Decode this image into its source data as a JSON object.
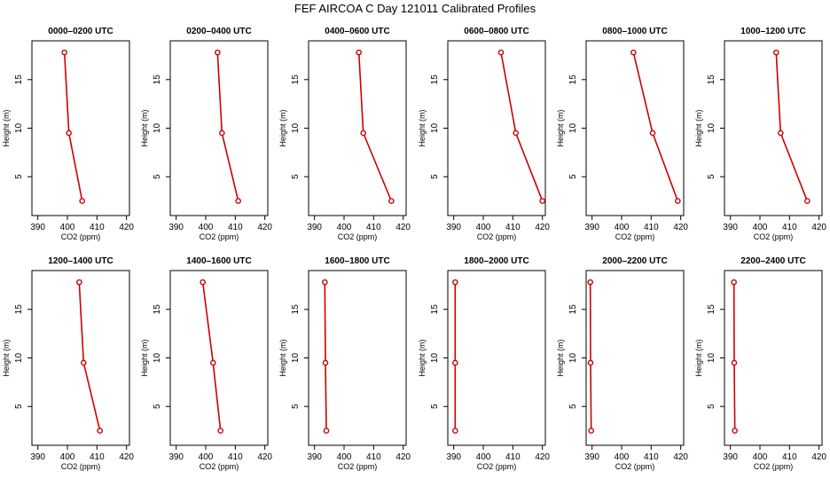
{
  "figure": {
    "title": "FEF AIRCOA C  Day 121011  Calibrated Profiles"
  },
  "chart_data": [
    {
      "type": "line",
      "title": "0000–0200 UTC",
      "xlabel": "CO2 (ppm)",
      "ylabel": "Height (m)",
      "xlim": [
        388,
        421
      ],
      "ylim": [
        1,
        19
      ],
      "xticks": [
        390,
        400,
        410,
        420
      ],
      "yticks": [
        5,
        10,
        15
      ],
      "x": [
        405,
        400.5,
        399
      ],
      "y": [
        2.5,
        9.5,
        17.8
      ]
    },
    {
      "type": "line",
      "title": "0200–0400 UTC",
      "xlabel": "CO2 (ppm)",
      "ylabel": "Height (m)",
      "xlim": [
        388,
        421
      ],
      "ylim": [
        1,
        19
      ],
      "xticks": [
        390,
        400,
        410,
        420
      ],
      "yticks": [
        5,
        10,
        15
      ],
      "x": [
        411,
        405.5,
        404
      ],
      "y": [
        2.5,
        9.5,
        17.8
      ]
    },
    {
      "type": "line",
      "title": "0400–0600 UTC",
      "xlabel": "CO2 (ppm)",
      "ylabel": "Height (m)",
      "xlim": [
        388,
        421
      ],
      "ylim": [
        1,
        19
      ],
      "xticks": [
        390,
        400,
        410,
        420
      ],
      "yticks": [
        5,
        10,
        15
      ],
      "x": [
        416,
        406.5,
        405
      ],
      "y": [
        2.5,
        9.5,
        17.8
      ]
    },
    {
      "type": "line",
      "title": "0600–0800 UTC",
      "xlabel": "CO2 (ppm)",
      "ylabel": "Height (m)",
      "xlim": [
        388,
        421
      ],
      "ylim": [
        1,
        19
      ],
      "xticks": [
        390,
        400,
        410,
        420
      ],
      "yticks": [
        5,
        10,
        15
      ],
      "x": [
        420,
        411,
        406
      ],
      "y": [
        2.5,
        9.5,
        17.8
      ]
    },
    {
      "type": "line",
      "title": "0800–1000 UTC",
      "xlabel": "CO2 (ppm)",
      "ylabel": "Height (m)",
      "xlim": [
        388,
        421
      ],
      "ylim": [
        1,
        19
      ],
      "xticks": [
        390,
        400,
        410,
        420
      ],
      "yticks": [
        5,
        10,
        15
      ],
      "x": [
        419,
        410.5,
        404
      ],
      "y": [
        2.5,
        9.5,
        17.8
      ]
    },
    {
      "type": "line",
      "title": "1000–1200 UTC",
      "xlabel": "CO2 (ppm)",
      "ylabel": "Height (m)",
      "xlim": [
        388,
        421
      ],
      "ylim": [
        1,
        19
      ],
      "xticks": [
        390,
        400,
        410,
        420
      ],
      "yticks": [
        5,
        10,
        15
      ],
      "x": [
        416,
        407,
        405.5
      ],
      "y": [
        2.5,
        9.5,
        17.8
      ]
    },
    {
      "type": "line",
      "title": "1200–1400 UTC",
      "xlabel": "CO2 (ppm)",
      "ylabel": "Height (m)",
      "xlim": [
        388,
        421
      ],
      "ylim": [
        1,
        19
      ],
      "xticks": [
        390,
        400,
        410,
        420
      ],
      "yticks": [
        5,
        10,
        15
      ],
      "x": [
        411,
        405.5,
        404
      ],
      "y": [
        2.5,
        9.5,
        17.8
      ]
    },
    {
      "type": "line",
      "title": "1400–1600 UTC",
      "xlabel": "CO2 (ppm)",
      "ylabel": "Height (m)",
      "xlim": [
        388,
        421
      ],
      "ylim": [
        1,
        19
      ],
      "xticks": [
        390,
        400,
        410,
        420
      ],
      "yticks": [
        5,
        10,
        15
      ],
      "x": [
        405,
        402.5,
        399
      ],
      "y": [
        2.5,
        9.5,
        17.8
      ]
    },
    {
      "type": "line",
      "title": "1600–1800 UTC",
      "xlabel": "CO2 (ppm)",
      "ylabel": "Height (m)",
      "xlim": [
        388,
        421
      ],
      "ylim": [
        1,
        19
      ],
      "xticks": [
        390,
        400,
        410,
        420
      ],
      "yticks": [
        5,
        10,
        15
      ],
      "x": [
        394,
        393.7,
        393.5
      ],
      "y": [
        2.5,
        9.5,
        17.8
      ]
    },
    {
      "type": "line",
      "title": "1800–2000 UTC",
      "xlabel": "CO2 (ppm)",
      "ylabel": "Height (m)",
      "xlim": [
        388,
        421
      ],
      "ylim": [
        1,
        19
      ],
      "xticks": [
        390,
        400,
        410,
        420
      ],
      "yticks": [
        5,
        10,
        15
      ],
      "x": [
        390.5,
        390.5,
        390.5
      ],
      "y": [
        2.5,
        9.5,
        17.8
      ]
    },
    {
      "type": "line",
      "title": "2000–2200 UTC",
      "xlabel": "CO2 (ppm)",
      "ylabel": "Height (m)",
      "xlim": [
        388,
        421
      ],
      "ylim": [
        1,
        19
      ],
      "xticks": [
        390,
        400,
        410,
        420
      ],
      "yticks": [
        5,
        10,
        15
      ],
      "x": [
        389.7,
        389.5,
        389.4
      ],
      "y": [
        2.5,
        9.5,
        17.8
      ]
    },
    {
      "type": "line",
      "title": "2200–2400 UTC",
      "xlabel": "CO2 (ppm)",
      "ylabel": "Height (m)",
      "xlim": [
        388,
        421
      ],
      "ylim": [
        1,
        19
      ],
      "xticks": [
        390,
        400,
        410,
        420
      ],
      "yticks": [
        5,
        10,
        15
      ],
      "x": [
        391.5,
        391.3,
        391.2
      ],
      "y": [
        2.5,
        9.5,
        17.8
      ]
    }
  ],
  "style": {
    "line_color": "#cc0000",
    "axis_color": "#000000",
    "background": "#ffffff"
  }
}
